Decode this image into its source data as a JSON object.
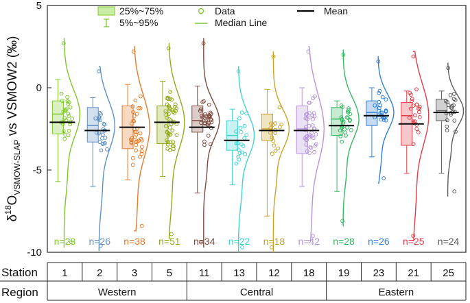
{
  "chart_data": {
    "type": "box-violin",
    "ylabel_parts": {
      "delta": "δ",
      "sup": "18",
      "o": "O",
      "sub": "VSMOW-SLAP",
      "rest": " vs VSMOW2 (‰)"
    },
    "ylim": [
      -10,
      5
    ],
    "yticks": [
      5,
      0,
      -5,
      -10
    ],
    "ytick_labels": [
      "5",
      "0",
      "-5",
      "-10"
    ],
    "legend": {
      "box": "25%~75%",
      "whisker": "5%~95%",
      "data": "Data",
      "median": "Median Line",
      "mean": "Mean"
    },
    "table": {
      "station_header": "Station",
      "region_header": "Region",
      "regions": [
        {
          "name": "Western",
          "span": 4
        },
        {
          "name": "Central",
          "span": 4
        },
        {
          "name": "Eastern",
          "span": 4
        }
      ]
    },
    "series": [
      {
        "station": "1",
        "region": "Western",
        "color": "#7ec82a",
        "n_label": "n=28",
        "p5": -5.7,
        "q1": -2.8,
        "median": -1.6,
        "q3": -0.8,
        "p95": 0.5,
        "mean": -2.1,
        "min": -9.7,
        "max": 3.0
      },
      {
        "station": "2",
        "region": "Western",
        "color": "#5b8fc7",
        "n_label": "n=26",
        "p5": -6.0,
        "q1": -3.3,
        "median": -2.3,
        "q3": -1.2,
        "p95": -0.6,
        "mean": -2.6,
        "min": -9.9,
        "max": 1.3
      },
      {
        "station": "3",
        "region": "Western",
        "color": "#e57a2a",
        "n_label": "n=38",
        "p5": -5.6,
        "q1": -3.7,
        "median": -2.4,
        "q3": -1.1,
        "p95": 0.2,
        "mean": -2.4,
        "min": -8.7,
        "max": 2.5
      },
      {
        "station": "5",
        "region": "Western",
        "color": "#8faa1c",
        "n_label": "n=51",
        "p5": -5.4,
        "q1": -3.4,
        "median": -2.1,
        "q3": -1.1,
        "p95": 0.4,
        "mean": -2.1,
        "min": -9.2,
        "max": 2.7
      },
      {
        "station": "11",
        "region": "Central",
        "color": "#7d4a3e",
        "n_label": "n=34",
        "p5": -6.4,
        "q1": -2.7,
        "median": -2.0,
        "q3": -1.1,
        "p95": 0.1,
        "mean": -2.4,
        "min": -9.7,
        "max": 3.0
      },
      {
        "station": "13",
        "region": "Central",
        "color": "#3fd3d0",
        "n_label": "n=22",
        "p5": -5.9,
        "q1": -3.8,
        "median": -2.9,
        "q3": -2.0,
        "p95": -1.3,
        "mean": -3.2,
        "min": -10.0,
        "max": 1.3
      },
      {
        "station": "12",
        "region": "Central",
        "color": "#c9a322",
        "n_label": "n=18",
        "p5": -7.8,
        "q1": -3.2,
        "median": -2.5,
        "q3": -1.6,
        "p95": -0.1,
        "mean": -2.6,
        "min": -10.0,
        "max": 2.2
      },
      {
        "station": "18",
        "region": "Central",
        "color": "#b594dd",
        "n_label": "n=42",
        "p5": -6.0,
        "q1": -4.0,
        "median": -2.5,
        "q3": -1.1,
        "p95": 0.0,
        "mean": -2.6,
        "min": -9.3,
        "max": 2.5
      },
      {
        "station": "19",
        "region": "Eastern",
        "color": "#33b860",
        "n_label": "n=28",
        "p5": -6.3,
        "q1": -2.9,
        "median": -1.9,
        "q3": -1.2,
        "p95": -0.8,
        "mean": -2.3,
        "min": -8.4,
        "max": 2.3
      },
      {
        "station": "23",
        "region": "Eastern",
        "color": "#2f7fd8",
        "n_label": "n=26",
        "p5": -4.2,
        "q1": -2.3,
        "median": -1.5,
        "q3": -0.8,
        "p95": 0.0,
        "mean": -1.7,
        "min": -5.8,
        "max": 1.9
      },
      {
        "station": "21",
        "region": "Eastern",
        "color": "#e23c46",
        "n_label": "n=25",
        "p5": -5.2,
        "q1": -3.5,
        "median": -1.7,
        "q3": -0.9,
        "p95": -0.2,
        "mean": -2.2,
        "min": -9.3,
        "max": 2.2
      },
      {
        "station": "25",
        "region": "Eastern",
        "color": "#5a5a5a",
        "n_label": "n=24",
        "p5": -5.2,
        "q1": -2.0,
        "median": -1.4,
        "q3": -0.7,
        "p95": -0.2,
        "mean": -1.5,
        "min": -6.6,
        "max": 1.5
      }
    ]
  }
}
